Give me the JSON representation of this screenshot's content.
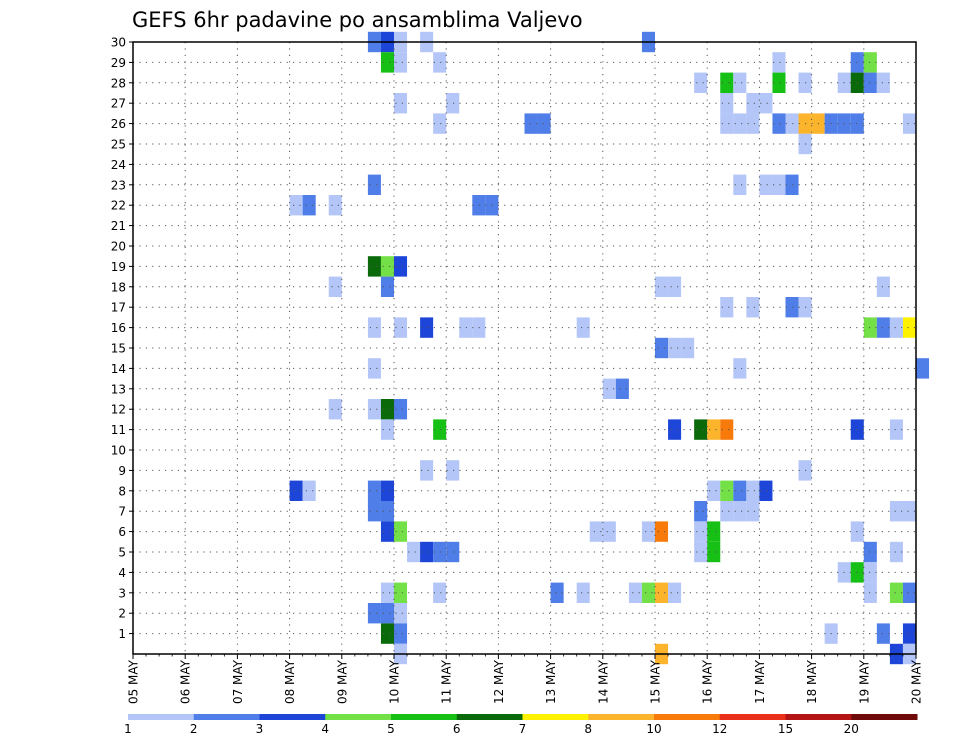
{
  "chart_data": {
    "type": "heatmap",
    "title": "GEFS 6hr padavine po ansamblima Valjevo",
    "xlabel": "",
    "ylabel": "",
    "x_ticks": [
      "05 MAY",
      "06 MAY",
      "07 MAY",
      "08 MAY",
      "09 MAY",
      "10 MAY",
      "11 MAY",
      "12 MAY",
      "13 MAY",
      "14 MAY",
      "15 MAY",
      "16 MAY",
      "17 MAY",
      "18 MAY",
      "19 MAY",
      "20 MAY"
    ],
    "x_range_days": [
      0,
      15
    ],
    "y_ticks": [
      "1",
      "2",
      "3",
      "4",
      "5",
      "6",
      "7",
      "8",
      "9",
      "10",
      "11",
      "12",
      "13",
      "14",
      "15",
      "16",
      "17",
      "18",
      "19",
      "20",
      "21",
      "22",
      "23",
      "24",
      "25",
      "26",
      "27",
      "28",
      "29",
      "30"
    ],
    "y_range": [
      0,
      30
    ],
    "grid": true,
    "colorbar": {
      "colors": [
        "#b4c6f8",
        "#4f7ee8",
        "#1d45d8",
        "#74e048",
        "#16c014",
        "#0a6a0a",
        "#fff200",
        "#fbb42c",
        "#f77a0a",
        "#e8301a",
        "#b41414",
        "#6e0a0a"
      ],
      "labels": [
        "1",
        "2",
        "3",
        "4",
        "5",
        "6",
        "7",
        "8",
        "10",
        "12",
        "15",
        "20"
      ]
    },
    "cells": [
      {
        "member": 30,
        "day": 4.5,
        "level": 1
      },
      {
        "member": 30,
        "day": 4.75,
        "level": 2
      },
      {
        "member": 30,
        "day": 5.0,
        "level": 0
      },
      {
        "member": 30,
        "day": 5.5,
        "level": 0
      },
      {
        "member": 30,
        "day": 9.75,
        "level": 1
      },
      {
        "member": 29,
        "day": 4.75,
        "level": 4
      },
      {
        "member": 29,
        "day": 5.0,
        "level": 0
      },
      {
        "member": 29,
        "day": 5.75,
        "level": 0
      },
      {
        "member": 29,
        "day": 12.25,
        "level": 0
      },
      {
        "member": 29,
        "day": 13.75,
        "level": 1
      },
      {
        "member": 29,
        "day": 14.0,
        "level": 3
      },
      {
        "member": 28,
        "day": 10.75,
        "level": 0
      },
      {
        "member": 28,
        "day": 11.25,
        "level": 4
      },
      {
        "member": 28,
        "day": 11.5,
        "level": 0
      },
      {
        "member": 28,
        "day": 12.25,
        "level": 4
      },
      {
        "member": 28,
        "day": 12.75,
        "level": 0
      },
      {
        "member": 28,
        "day": 13.5,
        "level": 0
      },
      {
        "member": 28,
        "day": 13.75,
        "level": 5
      },
      {
        "member": 28,
        "day": 14.0,
        "level": 1
      },
      {
        "member": 28,
        "day": 14.25,
        "level": 0
      },
      {
        "member": 27,
        "day": 5.0,
        "level": 0
      },
      {
        "member": 27,
        "day": 6.0,
        "level": 0
      },
      {
        "member": 27,
        "day": 11.25,
        "level": 0
      },
      {
        "member": 27,
        "day": 11.75,
        "level": 0
      },
      {
        "member": 27,
        "day": 12.0,
        "level": 0
      },
      {
        "member": 26,
        "day": 5.75,
        "level": 0
      },
      {
        "member": 26,
        "day": 7.5,
        "level": 1
      },
      {
        "member": 26,
        "day": 7.75,
        "level": 1
      },
      {
        "member": 26,
        "day": 11.25,
        "level": 0
      },
      {
        "member": 26,
        "day": 11.5,
        "level": 0
      },
      {
        "member": 26,
        "day": 11.75,
        "level": 0
      },
      {
        "member": 26,
        "day": 12.25,
        "level": 1
      },
      {
        "member": 26,
        "day": 12.5,
        "level": 0
      },
      {
        "member": 26,
        "day": 12.75,
        "level": 7
      },
      {
        "member": 26,
        "day": 13.0,
        "level": 7
      },
      {
        "member": 26,
        "day": 13.25,
        "level": 1
      },
      {
        "member": 26,
        "day": 13.5,
        "level": 1
      },
      {
        "member": 26,
        "day": 13.75,
        "level": 1
      },
      {
        "member": 26,
        "day": 14.75,
        "level": 0
      },
      {
        "member": 25,
        "day": 12.75,
        "level": 0
      },
      {
        "member": 23,
        "day": 4.5,
        "level": 1
      },
      {
        "member": 23,
        "day": 11.5,
        "level": 0
      },
      {
        "member": 23,
        "day": 12.0,
        "level": 0
      },
      {
        "member": 23,
        "day": 12.25,
        "level": 0
      },
      {
        "member": 23,
        "day": 12.5,
        "level": 1
      },
      {
        "member": 22,
        "day": 3.0,
        "level": 0
      },
      {
        "member": 22,
        "day": 3.25,
        "level": 1
      },
      {
        "member": 22,
        "day": 3.75,
        "level": 0
      },
      {
        "member": 22,
        "day": 6.5,
        "level": 1
      },
      {
        "member": 22,
        "day": 6.75,
        "level": 1
      },
      {
        "member": 19,
        "day": 4.5,
        "level": 5
      },
      {
        "member": 19,
        "day": 4.75,
        "level": 3
      },
      {
        "member": 19,
        "day": 5.0,
        "level": 2
      },
      {
        "member": 18,
        "day": 3.75,
        "level": 0
      },
      {
        "member": 18,
        "day": 4.75,
        "level": 1
      },
      {
        "member": 18,
        "day": 10.0,
        "level": 0
      },
      {
        "member": 18,
        "day": 10.25,
        "level": 0
      },
      {
        "member": 18,
        "day": 14.25,
        "level": 0
      },
      {
        "member": 17,
        "day": 11.25,
        "level": 0
      },
      {
        "member": 17,
        "day": 11.75,
        "level": 0
      },
      {
        "member": 17,
        "day": 12.5,
        "level": 1
      },
      {
        "member": 17,
        "day": 12.75,
        "level": 0
      },
      {
        "member": 16,
        "day": 4.5,
        "level": 0
      },
      {
        "member": 16,
        "day": 5.0,
        "level": 0
      },
      {
        "member": 16,
        "day": 5.5,
        "level": 2
      },
      {
        "member": 16,
        "day": 6.25,
        "level": 0
      },
      {
        "member": 16,
        "day": 6.5,
        "level": 0
      },
      {
        "member": 16,
        "day": 8.5,
        "level": 0
      },
      {
        "member": 16,
        "day": 14.0,
        "level": 3
      },
      {
        "member": 16,
        "day": 14.25,
        "level": 1
      },
      {
        "member": 16,
        "day": 14.5,
        "level": 0
      },
      {
        "member": 16,
        "day": 14.75,
        "level": 6
      },
      {
        "member": 15,
        "day": 10.0,
        "level": 1
      },
      {
        "member": 15,
        "day": 10.25,
        "level": 0
      },
      {
        "member": 15,
        "day": 10.5,
        "level": 0
      },
      {
        "member": 14,
        "day": 4.5,
        "level": 0
      },
      {
        "member": 14,
        "day": 11.5,
        "level": 0
      },
      {
        "member": 14,
        "day": 15.0,
        "level": 1
      },
      {
        "member": 13,
        "day": 9.0,
        "level": 0
      },
      {
        "member": 13,
        "day": 9.25,
        "level": 1
      },
      {
        "member": 12,
        "day": 3.75,
        "level": 0
      },
      {
        "member": 12,
        "day": 4.5,
        "level": 0
      },
      {
        "member": 12,
        "day": 4.75,
        "level": 5
      },
      {
        "member": 12,
        "day": 5.0,
        "level": 1
      },
      {
        "member": 11,
        "day": 4.75,
        "level": 0
      },
      {
        "member": 11,
        "day": 5.75,
        "level": 4
      },
      {
        "member": 11,
        "day": 10.25,
        "level": 2
      },
      {
        "member": 11,
        "day": 10.75,
        "level": 5
      },
      {
        "member": 11,
        "day": 11.0,
        "level": 7
      },
      {
        "member": 11,
        "day": 11.25,
        "level": 8
      },
      {
        "member": 11,
        "day": 13.75,
        "level": 2
      },
      {
        "member": 11,
        "day": 14.5,
        "level": 0
      },
      {
        "member": 9,
        "day": 5.5,
        "level": 0
      },
      {
        "member": 9,
        "day": 6.0,
        "level": 0
      },
      {
        "member": 9,
        "day": 12.75,
        "level": 0
      },
      {
        "member": 8,
        "day": 3.0,
        "level": 2
      },
      {
        "member": 8,
        "day": 3.25,
        "level": 0
      },
      {
        "member": 8,
        "day": 4.5,
        "level": 1
      },
      {
        "member": 8,
        "day": 4.75,
        "level": 2
      },
      {
        "member": 8,
        "day": 11.0,
        "level": 0
      },
      {
        "member": 8,
        "day": 11.25,
        "level": 3
      },
      {
        "member": 8,
        "day": 11.5,
        "level": 1
      },
      {
        "member": 8,
        "day": 11.75,
        "level": 0
      },
      {
        "member": 8,
        "day": 12.0,
        "level": 2
      },
      {
        "member": 7,
        "day": 4.5,
        "level": 1
      },
      {
        "member": 7,
        "day": 4.75,
        "level": 1
      },
      {
        "member": 7,
        "day": 10.75,
        "level": 1
      },
      {
        "member": 7,
        "day": 11.25,
        "level": 0
      },
      {
        "member": 7,
        "day": 11.5,
        "level": 0
      },
      {
        "member": 7,
        "day": 11.75,
        "level": 0
      },
      {
        "member": 7,
        "day": 14.5,
        "level": 0
      },
      {
        "member": 7,
        "day": 14.75,
        "level": 0
      },
      {
        "member": 6,
        "day": 4.75,
        "level": 2
      },
      {
        "member": 6,
        "day": 5.0,
        "level": 3
      },
      {
        "member": 6,
        "day": 8.75,
        "level": 0
      },
      {
        "member": 6,
        "day": 9.0,
        "level": 0
      },
      {
        "member": 6,
        "day": 9.75,
        "level": 0
      },
      {
        "member": 6,
        "day": 10.0,
        "level": 8
      },
      {
        "member": 6,
        "day": 10.75,
        "level": 0
      },
      {
        "member": 6,
        "day": 11.0,
        "level": 4
      },
      {
        "member": 6,
        "day": 13.75,
        "level": 0
      },
      {
        "member": 5,
        "day": 5.25,
        "level": 0
      },
      {
        "member": 5,
        "day": 5.5,
        "level": 2
      },
      {
        "member": 5,
        "day": 5.75,
        "level": 1
      },
      {
        "member": 5,
        "day": 6.0,
        "level": 1
      },
      {
        "member": 5,
        "day": 10.75,
        "level": 0
      },
      {
        "member": 5,
        "day": 11.0,
        "level": 4
      },
      {
        "member": 5,
        "day": 14.0,
        "level": 1
      },
      {
        "member": 5,
        "day": 14.5,
        "level": 0
      },
      {
        "member": 4,
        "day": 13.5,
        "level": 0
      },
      {
        "member": 4,
        "day": 13.75,
        "level": 4
      },
      {
        "member": 4,
        "day": 14.0,
        "level": 0
      },
      {
        "member": 3,
        "day": 4.75,
        "level": 0
      },
      {
        "member": 3,
        "day": 5.0,
        "level": 3
      },
      {
        "member": 3,
        "day": 5.75,
        "level": 0
      },
      {
        "member": 3,
        "day": 8.0,
        "level": 1
      },
      {
        "member": 3,
        "day": 8.5,
        "level": 0
      },
      {
        "member": 3,
        "day": 9.5,
        "level": 0
      },
      {
        "member": 3,
        "day": 9.75,
        "level": 3
      },
      {
        "member": 3,
        "day": 10.0,
        "level": 7
      },
      {
        "member": 3,
        "day": 10.25,
        "level": 0
      },
      {
        "member": 3,
        "day": 14.0,
        "level": 0
      },
      {
        "member": 3,
        "day": 14.5,
        "level": 3
      },
      {
        "member": 3,
        "day": 14.75,
        "level": 1
      },
      {
        "member": 2,
        "day": 4.5,
        "level": 1
      },
      {
        "member": 2,
        "day": 4.75,
        "level": 1
      },
      {
        "member": 2,
        "day": 5.0,
        "level": 0
      },
      {
        "member": 1,
        "day": 4.75,
        "level": 5
      },
      {
        "member": 1,
        "day": 5.0,
        "level": 1
      },
      {
        "member": 1,
        "day": 13.25,
        "level": 0
      },
      {
        "member": 1,
        "day": 14.25,
        "level": 1
      },
      {
        "member": 1,
        "day": 14.75,
        "level": 2
      },
      {
        "member": 0,
        "day": 5.0,
        "level": 0
      },
      {
        "member": 0,
        "day": 10.0,
        "level": 7
      },
      {
        "member": 0,
        "day": 14.5,
        "level": 2
      },
      {
        "member": 0,
        "day": 14.75,
        "level": 0
      }
    ]
  }
}
